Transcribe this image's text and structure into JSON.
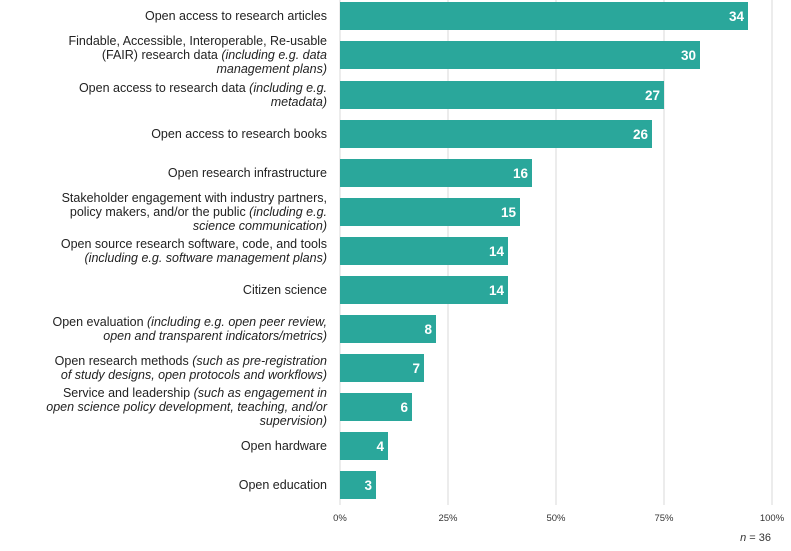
{
  "chart_data": {
    "type": "bar",
    "orientation": "horizontal",
    "unit_note": "values shown are counts of respondents; axis shows percent of n",
    "n_label": "n",
    "n_value": "= 36",
    "xlim": [
      0,
      100
    ],
    "x_ticks": [
      "0%",
      "25%",
      "50%",
      "75%",
      "100%"
    ],
    "grid": "vertical",
    "bar_color": "#2aa79b",
    "categories": [
      {
        "label": [
          {
            "t": "Open access to research articles"
          }
        ],
        "value": 34
      },
      {
        "label": [
          {
            "t": "Findable, Accessible, Interoperable, Re-usable"
          },
          {
            "t": "(FAIR) research data "
          },
          {
            "t": "(including e.g. data",
            "i": true
          },
          {
            "t": "management plans)",
            "i": true
          }
        ],
        "value": 30
      },
      {
        "label": [
          {
            "t": "Open access to research data "
          },
          {
            "t": "(including e.g.",
            "i": true
          },
          {
            "t": "metadata)",
            "i": true
          }
        ],
        "value": 27
      },
      {
        "label": [
          {
            "t": "Open access to research books"
          }
        ],
        "value": 26
      },
      {
        "label": [
          {
            "t": "Open research infrastructure"
          }
        ],
        "value": 16
      },
      {
        "label": [
          {
            "t": "Stakeholder engagement with industry partners,"
          },
          {
            "t": "policy makers, and/or the public "
          },
          {
            "t": "(including e.g.",
            "i": true
          },
          {
            "t": "science communication)",
            "i": true
          }
        ],
        "value": 15
      },
      {
        "label": [
          {
            "t": "Open source research software, code, and tools"
          },
          {
            "t": "(including e.g. software management plans)",
            "i": true
          }
        ],
        "value": 14
      },
      {
        "label": [
          {
            "t": "Citizen science"
          }
        ],
        "value": 14
      },
      {
        "label": [
          {
            "t": "Open evaluation "
          },
          {
            "t": "(including e.g. open peer review,",
            "i": true
          },
          {
            "t": "open and transparent indicators/metrics)",
            "i": true
          }
        ],
        "value": 8
      },
      {
        "label": [
          {
            "t": "Open research methods "
          },
          {
            "t": "(such as pre-registration",
            "i": true
          },
          {
            "t": "of study designs, open protocols and workflows)",
            "i": true
          }
        ],
        "value": 7
      },
      {
        "label": [
          {
            "t": "Service and leadership "
          },
          {
            "t": "(such as engagement in",
            "i": true
          },
          {
            "t": "open science policy development, teaching, and/or",
            "i": true
          },
          {
            "t": "supervision)",
            "i": true
          }
        ],
        "value": 6
      },
      {
        "label": [
          {
            "t": "Open hardware"
          }
        ],
        "value": 4
      },
      {
        "label": [
          {
            "t": "Open education"
          }
        ],
        "value": 3
      }
    ]
  }
}
